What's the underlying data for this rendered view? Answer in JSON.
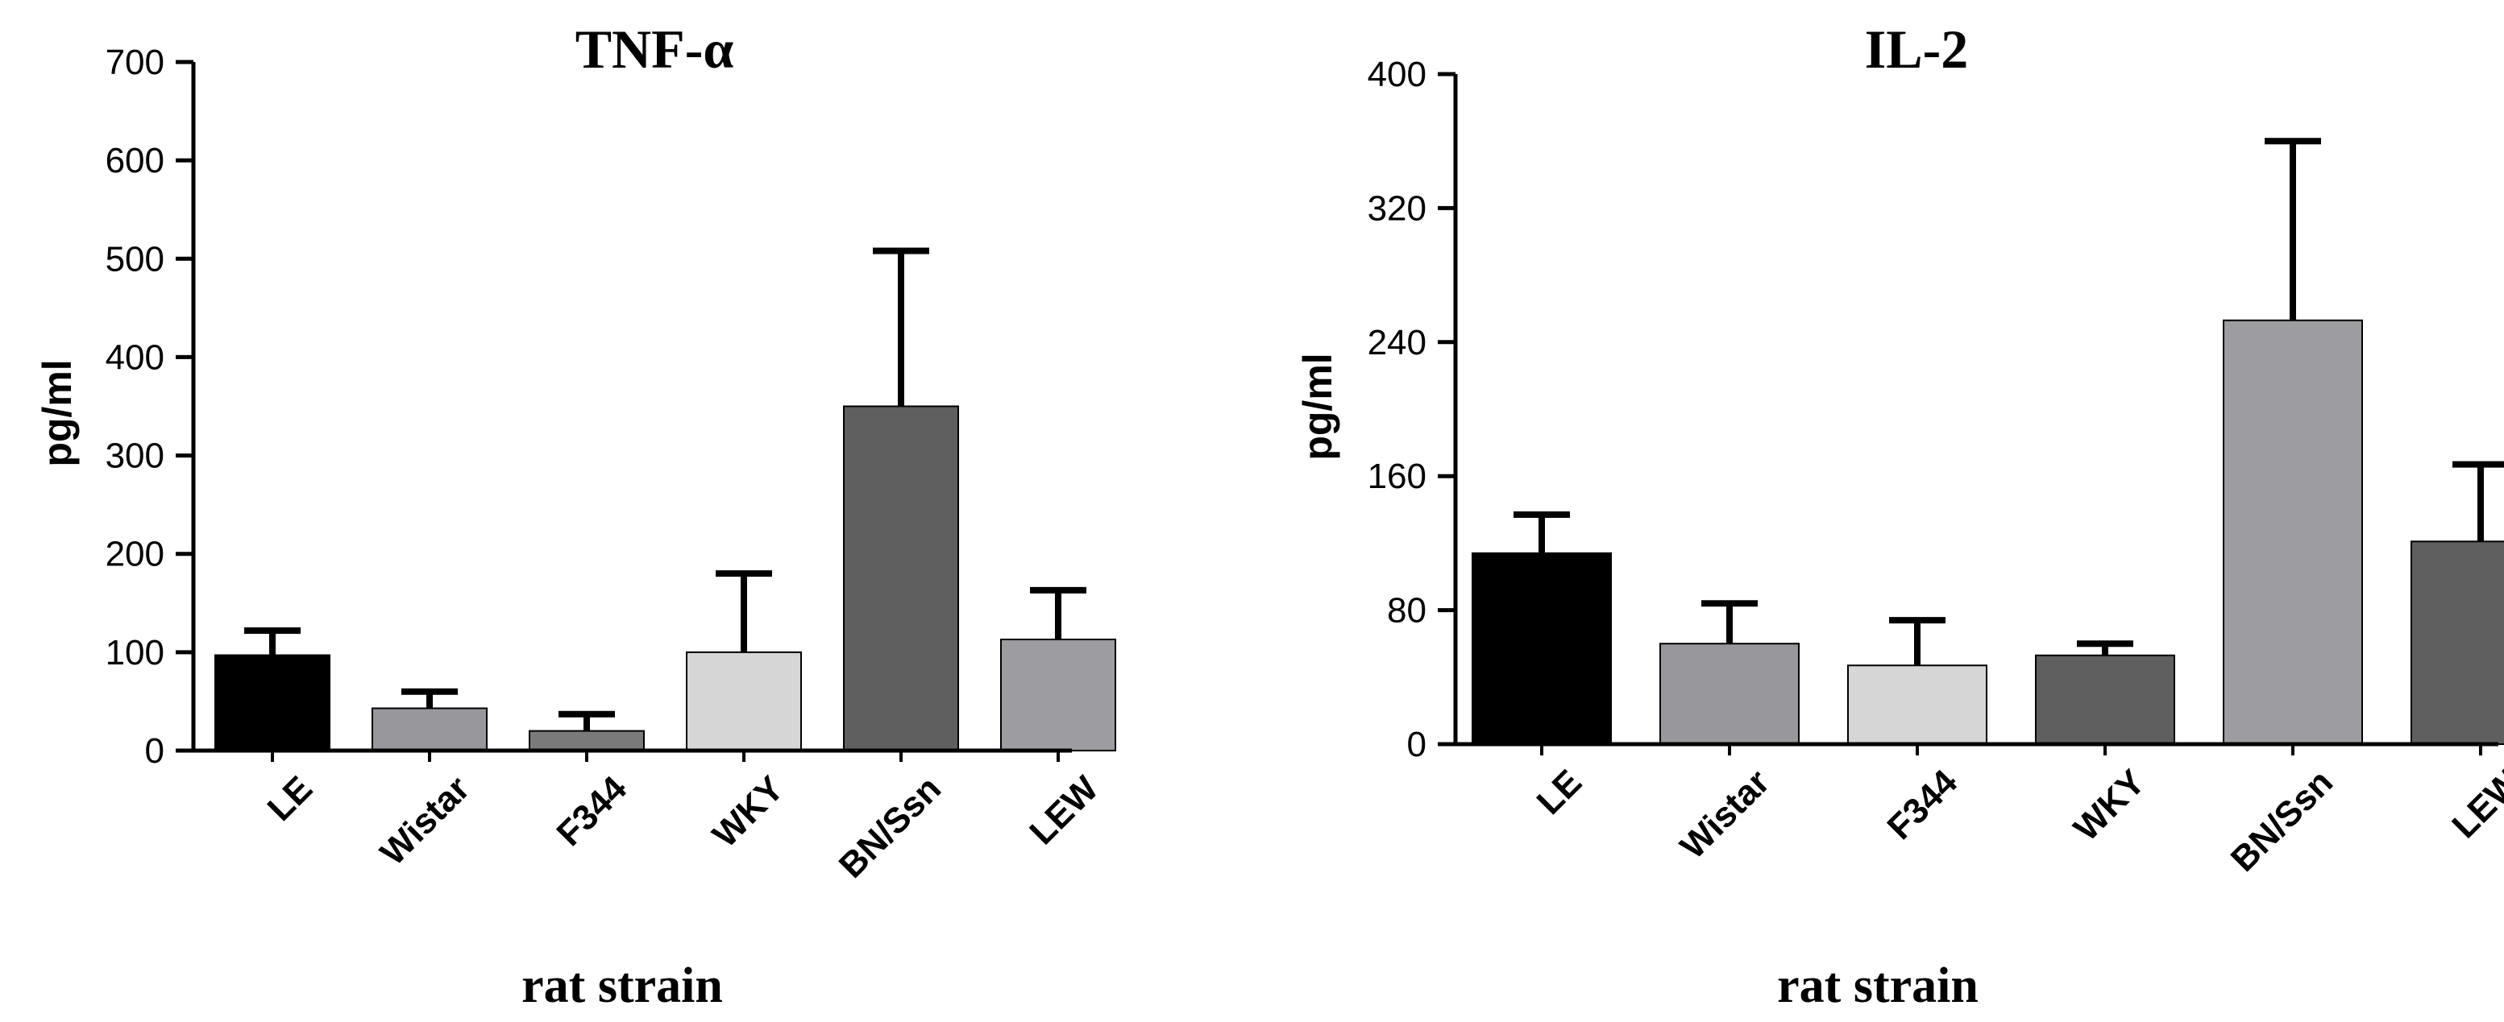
{
  "chart_data": [
    {
      "type": "bar",
      "title": "TNF-α",
      "xlabel": "rat strain",
      "ylabel": "pg/ml",
      "categories": [
        "LE",
        "Wistar",
        "F344",
        "WKY",
        "BN/Ssn",
        "LEW"
      ],
      "values": [
        97,
        43,
        20,
        100,
        350,
        113
      ],
      "errors": [
        122,
        60,
        37,
        180,
        508,
        163
      ],
      "colors": [
        "#000000",
        "#98989c",
        "#7a7a7a",
        "#d6d6d6",
        "#5f5f5f",
        "#9d9da1"
      ],
      "ylim": [
        0,
        700
      ],
      "yticks": [
        0,
        100,
        200,
        300,
        400,
        500,
        600,
        700
      ],
      "grid": false
    },
    {
      "type": "bar",
      "title": "IL-2",
      "xlabel": "rat strain",
      "ylabel": "pg/ml",
      "categories": [
        "LE",
        "Wistar",
        "F344",
        "WKY",
        "BN/Ssn",
        "LEW"
      ],
      "values": [
        114,
        60,
        47,
        53,
        253,
        121
      ],
      "errors": [
        137,
        84,
        74,
        60,
        360,
        167
      ],
      "colors": [
        "#000000",
        "#98989c",
        "#d6d6d6",
        "#5f5f5f",
        "#9d9da1",
        "#5f5f5f"
      ],
      "ylim": [
        0,
        400
      ],
      "yticks": [
        0,
        80,
        160,
        240,
        320,
        400
      ],
      "grid": false
    }
  ]
}
